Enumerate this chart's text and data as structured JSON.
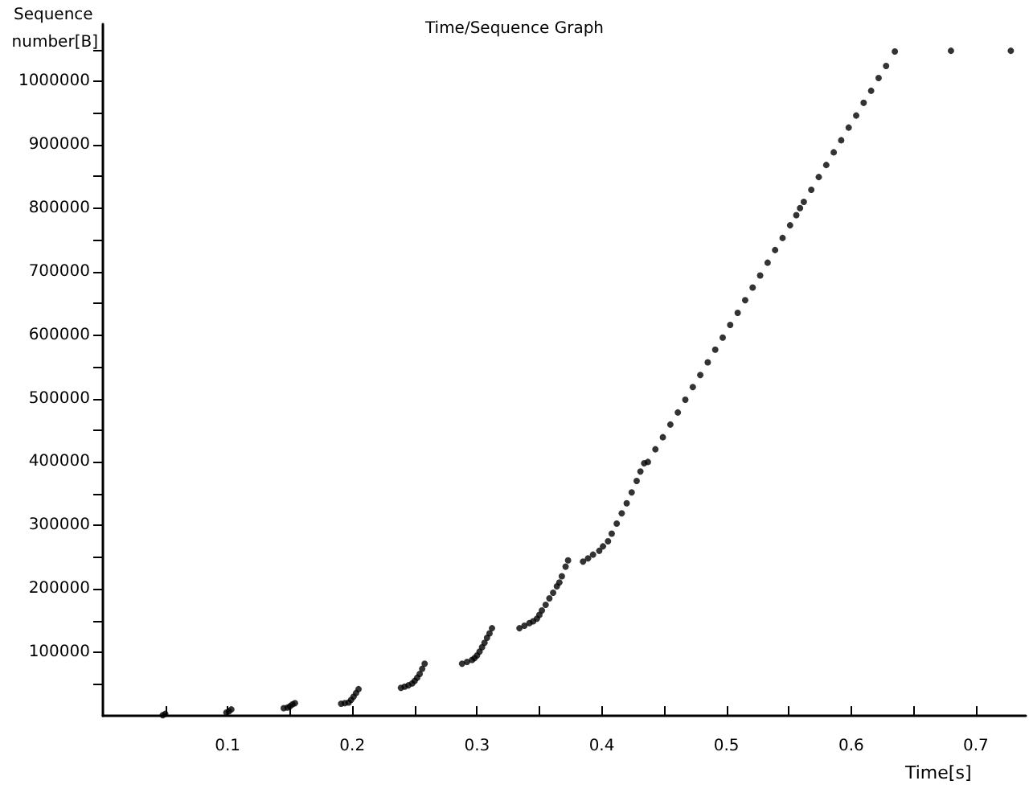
{
  "chart_data": {
    "type": "scatter",
    "title": "Time/Sequence Graph",
    "xlabel": "Time[s]",
    "ylabel": "Sequence number[B]",
    "xlim": [
      0,
      0.74
    ],
    "ylim": [
      0,
      1090000
    ],
    "xticks": [
      {
        "value": 0.05,
        "label": null
      },
      0.1,
      {
        "value": 0.15,
        "label": null
      },
      0.2,
      {
        "value": 0.25,
        "label": null
      },
      0.3,
      {
        "value": 0.35,
        "label": null
      },
      0.4,
      {
        "value": 0.45,
        "label": null
      },
      0.5,
      {
        "value": 0.55,
        "label": null
      },
      0.6,
      {
        "value": 0.65,
        "label": null
      },
      0.7
    ],
    "yticks": [
      {
        "value": 50000,
        "label": null
      },
      100000,
      {
        "value": 150000,
        "label": null
      },
      200000,
      {
        "value": 250000,
        "label": null
      },
      300000,
      {
        "value": 350000,
        "label": null
      },
      400000,
      {
        "value": 450000,
        "label": null
      },
      500000,
      {
        "value": 550000,
        "label": null
      },
      600000,
      {
        "value": 650000,
        "label": null
      },
      700000,
      {
        "value": 750000,
        "label": null
      },
      800000,
      {
        "value": 850000,
        "label": null
      },
      900000,
      {
        "value": 950000,
        "label": null
      },
      1000000,
      {
        "value": 1050000,
        "label": null
      }
    ],
    "grid": false,
    "marker": "circle",
    "series": [
      {
        "color": "#000000",
        "x": [
          0.048,
          0.05,
          0.099,
          0.101,
          0.103,
          0.145,
          0.148,
          0.15,
          0.152,
          0.154,
          0.191,
          0.194,
          0.197,
          0.199,
          0.201,
          0.203,
          0.205,
          0.239,
          0.242,
          0.245,
          0.248,
          0.25,
          0.252,
          0.254,
          0.256,
          0.258,
          0.288,
          0.292,
          0.296,
          0.298,
          0.3,
          0.302,
          0.304,
          0.306,
          0.308,
          0.31,
          0.312,
          0.334,
          0.338,
          0.342,
          0.345,
          0.348,
          0.35,
          0.352,
          0.355,
          0.358,
          0.361,
          0.364,
          0.366,
          0.368,
          0.371,
          0.373,
          0.385,
          0.389,
          0.393,
          0.398,
          0.401,
          0.405,
          0.408,
          0.412,
          0.416,
          0.42,
          0.424,
          0.428,
          0.431,
          0.434,
          0.437,
          0.443,
          0.449,
          0.455,
          0.461,
          0.467,
          0.473,
          0.479,
          0.485,
          0.491,
          0.497,
          0.503,
          0.509,
          0.515,
          0.521,
          0.527,
          0.533,
          0.539,
          0.545,
          0.551,
          0.556,
          0.559,
          0.562,
          0.568,
          0.574,
          0.58,
          0.586,
          0.592,
          0.598,
          0.604,
          0.61,
          0.616,
          0.622,
          0.628,
          0.635,
          0.68,
          0.728
        ],
        "values": [
          1000,
          3000,
          5000,
          7000,
          10000,
          12000,
          13000,
          15000,
          18000,
          20000,
          19000,
          20000,
          21000,
          25000,
          30000,
          36000,
          42000,
          44000,
          46000,
          48000,
          51000,
          55000,
          60000,
          66000,
          74000,
          82000,
          82000,
          85000,
          88000,
          91000,
          95000,
          101000,
          108000,
          115000,
          123000,
          130000,
          138000,
          138000,
          142000,
          146000,
          149000,
          153000,
          159000,
          166000,
          175000,
          185000,
          194000,
          204000,
          210000,
          220000,
          235000,
          245000,
          243000,
          248000,
          254000,
          260000,
          267000,
          275000,
          287000,
          303000,
          319000,
          335000,
          352000,
          370000,
          385000,
          398000,
          400000,
          420000,
          439000,
          459000,
          478000,
          498000,
          518000,
          537000,
          557000,
          577000,
          596000,
          616000,
          635000,
          655000,
          675000,
          694000,
          714000,
          734000,
          753000,
          773000,
          789000,
          800000,
          810000,
          829000,
          849000,
          868000,
          888000,
          907000,
          927000,
          946000,
          966000,
          985000,
          1005000,
          1024000,
          1047000,
          1048000,
          1048000
        ]
      }
    ]
  }
}
